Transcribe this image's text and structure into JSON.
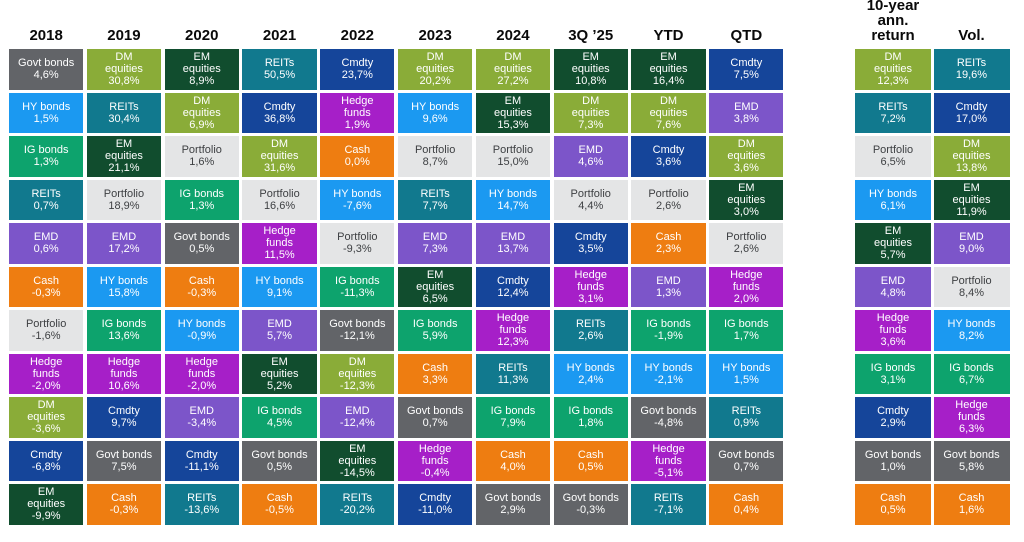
{
  "page": {
    "background": "#ffffff"
  },
  "assets": {
    "govt_bonds": {
      "label": "Govt bonds",
      "bg": "#626468",
      "fg": "#ffffff"
    },
    "hy_bonds": {
      "label": "HY bonds",
      "bg": "#1b99f1",
      "fg": "#ffffff"
    },
    "ig_bonds": {
      "label": "IG bonds",
      "bg": "#0da36d",
      "fg": "#ffffff"
    },
    "reits": {
      "label": "REITs",
      "bg": "#11798e",
      "fg": "#ffffff"
    },
    "emd": {
      "label": "EMD",
      "bg": "#7c55c9",
      "fg": "#ffffff"
    },
    "cash": {
      "label": "Cash",
      "bg": "#ee7d11",
      "fg": "#ffffff"
    },
    "portfolio": {
      "label": "Portfolio",
      "bg": "#e4e5e6",
      "fg": "#3e4043"
    },
    "hedge_funds": {
      "label": "Hedge\nfunds",
      "bg": "#a61fc8",
      "fg": "#ffffff"
    },
    "dm_equities": {
      "label": "DM\nequities",
      "bg": "#8aac38",
      "fg": "#ffffff"
    },
    "cmdty": {
      "label": "Cmdty",
      "bg": "#15459a",
      "fg": "#ffffff"
    },
    "em_equities": {
      "label": "EM\nequities",
      "bg": "#114d2e",
      "fg": "#ffffff"
    }
  },
  "chart_data": {
    "type": "table",
    "main_columns": [
      {
        "header": "2018",
        "cells": [
          {
            "asset": "govt_bonds",
            "value": "4,6%"
          },
          {
            "asset": "hy_bonds",
            "value": "1,5%"
          },
          {
            "asset": "ig_bonds",
            "value": "1,3%"
          },
          {
            "asset": "reits",
            "value": "0,7%"
          },
          {
            "asset": "emd",
            "value": "0,6%"
          },
          {
            "asset": "cash",
            "value": "-0,3%"
          },
          {
            "asset": "portfolio",
            "value": "-1,6%"
          },
          {
            "asset": "hedge_funds",
            "value": "-2,0%"
          },
          {
            "asset": "dm_equities",
            "value": "-3,6%"
          },
          {
            "asset": "cmdty",
            "value": "-6,8%"
          },
          {
            "asset": "em_equities",
            "value": "-9,9%"
          }
        ]
      },
      {
        "header": "2019",
        "cells": [
          {
            "asset": "dm_equities",
            "value": "30,8%"
          },
          {
            "asset": "reits",
            "value": "30,4%"
          },
          {
            "asset": "em_equities",
            "value": "21,1%"
          },
          {
            "asset": "portfolio",
            "value": "18,9%"
          },
          {
            "asset": "emd",
            "value": "17,2%"
          },
          {
            "asset": "hy_bonds",
            "value": "15,8%"
          },
          {
            "asset": "ig_bonds",
            "value": "13,6%"
          },
          {
            "asset": "hedge_funds",
            "value": "10,6%"
          },
          {
            "asset": "cmdty",
            "value": "9,7%"
          },
          {
            "asset": "govt_bonds",
            "value": "7,5%"
          },
          {
            "asset": "cash",
            "value": "-0,3%"
          }
        ]
      },
      {
        "header": "2020",
        "cells": [
          {
            "asset": "em_equities",
            "value": "8,9%"
          },
          {
            "asset": "dm_equities",
            "value": "6,9%"
          },
          {
            "asset": "portfolio",
            "value": "1,6%"
          },
          {
            "asset": "ig_bonds",
            "value": "1,3%"
          },
          {
            "asset": "govt_bonds",
            "value": "0,5%"
          },
          {
            "asset": "cash",
            "value": "-0,3%"
          },
          {
            "asset": "hy_bonds",
            "value": "-0,9%"
          },
          {
            "asset": "hedge_funds",
            "value": "-2,0%"
          },
          {
            "asset": "emd",
            "value": "-3,4%"
          },
          {
            "asset": "cmdty",
            "value": "-11,1%"
          },
          {
            "asset": "reits",
            "value": "-13,6%"
          }
        ]
      },
      {
        "header": "2021",
        "cells": [
          {
            "asset": "reits",
            "value": "50,5%"
          },
          {
            "asset": "cmdty",
            "value": "36,8%"
          },
          {
            "asset": "dm_equities",
            "value": "31,6%"
          },
          {
            "asset": "portfolio",
            "value": "16,6%"
          },
          {
            "asset": "hedge_funds",
            "value": "11,5%"
          },
          {
            "asset": "hy_bonds",
            "value": "9,1%"
          },
          {
            "asset": "emd",
            "value": "5,7%"
          },
          {
            "asset": "em_equities",
            "value": "5,2%"
          },
          {
            "asset": "ig_bonds",
            "value": "4,5%"
          },
          {
            "asset": "govt_bonds",
            "value": "0,5%"
          },
          {
            "asset": "cash",
            "value": "-0,5%"
          }
        ]
      },
      {
        "header": "2022",
        "cells": [
          {
            "asset": "cmdty",
            "value": "23,7%"
          },
          {
            "asset": "hedge_funds",
            "value": "1,9%"
          },
          {
            "asset": "cash",
            "value": "0,0%"
          },
          {
            "asset": "hy_bonds",
            "value": "-7,6%"
          },
          {
            "asset": "portfolio",
            "value": "-9,3%"
          },
          {
            "asset": "ig_bonds",
            "value": "-11,3%"
          },
          {
            "asset": "govt_bonds",
            "value": "-12,1%"
          },
          {
            "asset": "dm_equities",
            "value": "-12,3%"
          },
          {
            "asset": "emd",
            "value": "-12,4%"
          },
          {
            "asset": "em_equities",
            "value": "-14,5%"
          },
          {
            "asset": "reits",
            "value": "-20,2%"
          }
        ]
      },
      {
        "header": "2023",
        "cells": [
          {
            "asset": "dm_equities",
            "value": "20,2%"
          },
          {
            "asset": "hy_bonds",
            "value": "9,6%"
          },
          {
            "asset": "portfolio",
            "value": "8,7%"
          },
          {
            "asset": "reits",
            "value": "7,7%"
          },
          {
            "asset": "emd",
            "value": "7,3%"
          },
          {
            "asset": "em_equities",
            "value": "6,5%"
          },
          {
            "asset": "ig_bonds",
            "value": "5,9%"
          },
          {
            "asset": "cash",
            "value": "3,3%"
          },
          {
            "asset": "govt_bonds",
            "value": "0,7%"
          },
          {
            "asset": "hedge_funds",
            "value": "-0,4%"
          },
          {
            "asset": "cmdty",
            "value": "-11,0%"
          }
        ]
      },
      {
        "header": "2024",
        "cells": [
          {
            "asset": "dm_equities",
            "value": "27,2%"
          },
          {
            "asset": "em_equities",
            "value": "15,3%"
          },
          {
            "asset": "portfolio",
            "value": "15,0%"
          },
          {
            "asset": "hy_bonds",
            "value": "14,7%"
          },
          {
            "asset": "emd",
            "value": "13,7%"
          },
          {
            "asset": "cmdty",
            "value": "12,4%"
          },
          {
            "asset": "hedge_funds",
            "value": "12,3%"
          },
          {
            "asset": "reits",
            "value": "11,3%"
          },
          {
            "asset": "ig_bonds",
            "value": "7,9%"
          },
          {
            "asset": "cash",
            "value": "4,0%"
          },
          {
            "asset": "govt_bonds",
            "value": "2,9%"
          }
        ]
      },
      {
        "header": "3Q ’25",
        "cells": [
          {
            "asset": "em_equities",
            "value": "10,8%"
          },
          {
            "asset": "dm_equities",
            "value": "7,3%"
          },
          {
            "asset": "emd",
            "value": "4,6%"
          },
          {
            "asset": "portfolio",
            "value": "4,4%"
          },
          {
            "asset": "cmdty",
            "value": "3,5%"
          },
          {
            "asset": "hedge_funds",
            "value": "3,1%"
          },
          {
            "asset": "reits",
            "value": "2,6%"
          },
          {
            "asset": "hy_bonds",
            "value": "2,4%"
          },
          {
            "asset": "ig_bonds",
            "value": "1,8%"
          },
          {
            "asset": "cash",
            "value": "0,5%"
          },
          {
            "asset": "govt_bonds",
            "value": "-0,3%"
          }
        ]
      },
      {
        "header": "YTD",
        "cells": [
          {
            "asset": "em_equities",
            "value": "16,4%"
          },
          {
            "asset": "dm_equities",
            "value": "7,6%"
          },
          {
            "asset": "cmdty",
            "value": "3,6%"
          },
          {
            "asset": "portfolio",
            "value": "2,6%"
          },
          {
            "asset": "cash",
            "value": "2,3%"
          },
          {
            "asset": "emd",
            "value": "1,3%"
          },
          {
            "asset": "ig_bonds",
            "value": "-1,9%"
          },
          {
            "asset": "hy_bonds",
            "value": "-2,1%"
          },
          {
            "asset": "govt_bonds",
            "value": "-4,8%"
          },
          {
            "asset": "hedge_funds",
            "value": "-5,1%"
          },
          {
            "asset": "reits",
            "value": "-7,1%"
          }
        ]
      },
      {
        "header": "QTD",
        "cells": [
          {
            "asset": "cmdty",
            "value": "7,5%"
          },
          {
            "asset": "emd",
            "value": "3,8%"
          },
          {
            "asset": "dm_equities",
            "value": "3,6%"
          },
          {
            "asset": "em_equities",
            "value": "3,0%"
          },
          {
            "asset": "portfolio",
            "value": "2,6%"
          },
          {
            "asset": "hedge_funds",
            "value": "2,0%"
          },
          {
            "asset": "ig_bonds",
            "value": "1,7%"
          },
          {
            "asset": "hy_bonds",
            "value": "1,5%"
          },
          {
            "asset": "reits",
            "value": "0,9%"
          },
          {
            "asset": "govt_bonds",
            "value": "0,7%"
          },
          {
            "asset": "cash",
            "value": "0,4%"
          }
        ]
      }
    ],
    "stat_columns": [
      {
        "header": "10-year\nann. return",
        "cells": [
          {
            "asset": "dm_equities",
            "value": "12,3%"
          },
          {
            "asset": "reits",
            "value": "7,2%"
          },
          {
            "asset": "portfolio",
            "value": "6,5%"
          },
          {
            "asset": "hy_bonds",
            "value": "6,1%"
          },
          {
            "asset": "em_equities",
            "value": "5,7%"
          },
          {
            "asset": "emd",
            "value": "4,8%"
          },
          {
            "asset": "hedge_funds",
            "value": "3,6%"
          },
          {
            "asset": "ig_bonds",
            "value": "3,1%"
          },
          {
            "asset": "cmdty",
            "value": "2,9%"
          },
          {
            "asset": "govt_bonds",
            "value": "1,0%"
          },
          {
            "asset": "cash",
            "value": "0,5%"
          }
        ]
      },
      {
        "header": "Vol.",
        "cells": [
          {
            "asset": "reits",
            "value": "19,6%"
          },
          {
            "asset": "cmdty",
            "value": "17,0%"
          },
          {
            "asset": "dm_equities",
            "value": "13,8%"
          },
          {
            "asset": "em_equities",
            "value": "11,9%"
          },
          {
            "asset": "emd",
            "value": "9,0%"
          },
          {
            "asset": "portfolio",
            "value": "8,4%"
          },
          {
            "asset": "hy_bonds",
            "value": "8,2%"
          },
          {
            "asset": "ig_bonds",
            "value": "6,7%"
          },
          {
            "asset": "hedge_funds",
            "value": "6,3%"
          },
          {
            "asset": "govt_bonds",
            "value": "5,8%"
          },
          {
            "asset": "cash",
            "value": "1,6%"
          }
        ]
      }
    ]
  }
}
